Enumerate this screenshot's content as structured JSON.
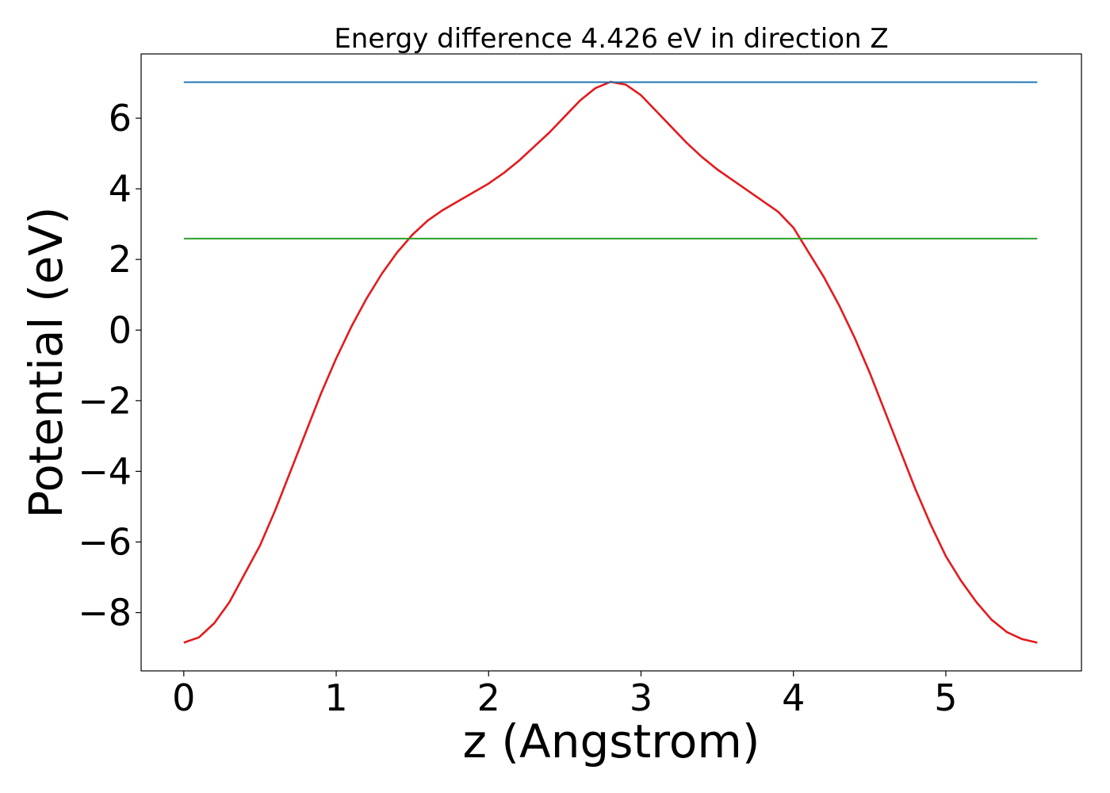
{
  "chart_data": {
    "type": "line",
    "title": "Energy difference 4.426 eV in direction Z",
    "xlabel": "z (Angstrom)",
    "ylabel": "Potential (eV)",
    "xlim": [
      -0.28,
      5.89
    ],
    "ylim": [
      -9.65,
      7.82
    ],
    "xticks": [
      0,
      1,
      2,
      3,
      4,
      5
    ],
    "xtick_labels": [
      "0",
      "1",
      "2",
      "3",
      "4",
      "5"
    ],
    "yticks": [
      -8,
      -6,
      -4,
      -2,
      0,
      2,
      4,
      6
    ],
    "ytick_labels": [
      "−8",
      "−6",
      "−4",
      "−2",
      "0",
      "2",
      "4",
      "6"
    ],
    "grid": false,
    "legend": "none",
    "series": [
      {
        "color": "#e41a1c",
        "x": [
          0.0,
          0.1,
          0.2,
          0.3,
          0.4,
          0.5,
          0.6,
          0.7,
          0.8,
          0.9,
          1.0,
          1.1,
          1.2,
          1.3,
          1.4,
          1.5,
          1.6,
          1.7,
          1.8,
          1.9,
          2.0,
          2.1,
          2.2,
          2.3,
          2.4,
          2.5,
          2.6,
          2.7,
          2.8,
          2.9,
          3.0,
          3.1,
          3.2,
          3.3,
          3.4,
          3.5,
          3.6,
          3.7,
          3.8,
          3.9,
          4.0,
          4.1,
          4.2,
          4.3,
          4.4,
          4.5,
          4.6,
          4.7,
          4.8,
          4.9,
          5.0,
          5.1,
          5.2,
          5.3,
          5.4,
          5.5,
          5.6
        ],
        "y": [
          -8.85,
          -8.7,
          -8.3,
          -7.7,
          -6.9,
          -6.1,
          -5.1,
          -4.0,
          -2.9,
          -1.8,
          -0.8,
          0.1,
          0.9,
          1.6,
          2.2,
          2.7,
          3.1,
          3.4,
          3.65,
          3.9,
          4.15,
          4.45,
          4.8,
          5.2,
          5.6,
          6.05,
          6.5,
          6.85,
          7.03,
          6.95,
          6.65,
          6.2,
          5.75,
          5.3,
          4.9,
          4.55,
          4.25,
          3.95,
          3.65,
          3.35,
          2.9,
          2.2,
          1.5,
          0.7,
          -0.2,
          -1.2,
          -2.3,
          -3.4,
          -4.5,
          -5.5,
          -6.4,
          -7.1,
          -7.7,
          -8.2,
          -8.55,
          -8.75,
          -8.85
        ]
      },
      {
        "color": "#1f77b4",
        "x": [
          0.0,
          5.6
        ],
        "y": [
          7.02,
          7.02
        ]
      },
      {
        "color": "#2ca02c",
        "x": [
          0.0,
          5.6
        ],
        "y": [
          2.59,
          2.59
        ]
      }
    ]
  }
}
